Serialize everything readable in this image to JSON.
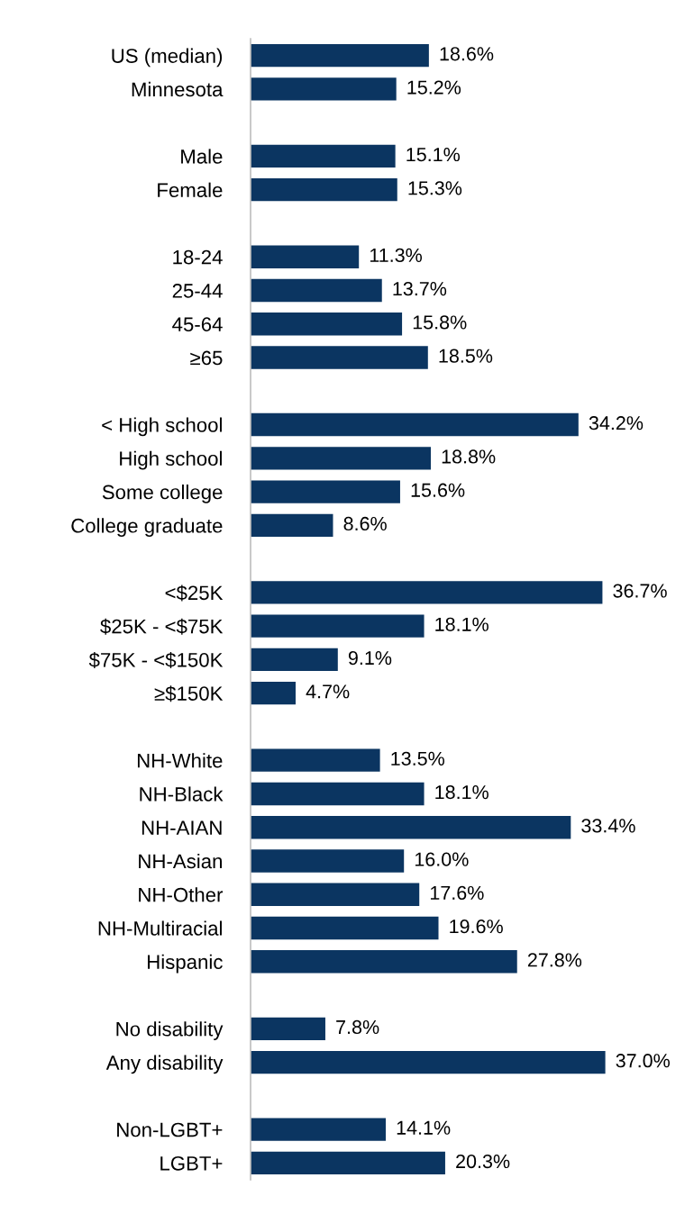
{
  "chart_data": {
    "type": "bar",
    "orientation": "horizontal",
    "data_labels": true,
    "color": "#0b3561",
    "categories": [
      "US (median)",
      "Minnesota",
      null,
      "Male",
      "Female",
      null,
      "18-24",
      "25-44",
      "45-64",
      "≥65",
      null,
      "< High school",
      "High school",
      "Some college",
      "College graduate",
      null,
      "<$25K",
      "$25K - <$75K",
      "$75K - <$150K",
      "≥$150K",
      null,
      "NH-White",
      "NH-Black",
      "NH-AIAN",
      "NH-Asian",
      "NH-Other",
      "NH-Multiracial",
      "Hispanic",
      null,
      "No disability",
      "Any disability",
      null,
      "Non-LGBT+",
      "LGBT+"
    ],
    "values": [
      18.6,
      15.2,
      null,
      15.1,
      15.3,
      null,
      11.3,
      13.7,
      15.8,
      18.5,
      null,
      34.2,
      18.8,
      15.6,
      8.6,
      null,
      36.7,
      18.1,
      9.1,
      4.7,
      null,
      13.5,
      18.1,
      33.4,
      16.0,
      17.6,
      19.6,
      27.8,
      null,
      7.8,
      37.0,
      null,
      14.1,
      20.3
    ],
    "value_labels": [
      "18.6%",
      "15.2%",
      null,
      "15.1%",
      "15.3%",
      null,
      "11.3%",
      "13.7%",
      "15.8%",
      "18.5%",
      null,
      "34.2%",
      "18.8%",
      "15.6%",
      "8.6%",
      null,
      "36.7%",
      "18.1%",
      "9.1%",
      "4.7%",
      null,
      "13.5%",
      "18.1%",
      "33.4%",
      "16.0%",
      "17.6%",
      "19.6%",
      "27.8%",
      null,
      "7.8%",
      "37.0%",
      null,
      "14.1%",
      "20.3%"
    ],
    "grid": false,
    "legend": false
  }
}
